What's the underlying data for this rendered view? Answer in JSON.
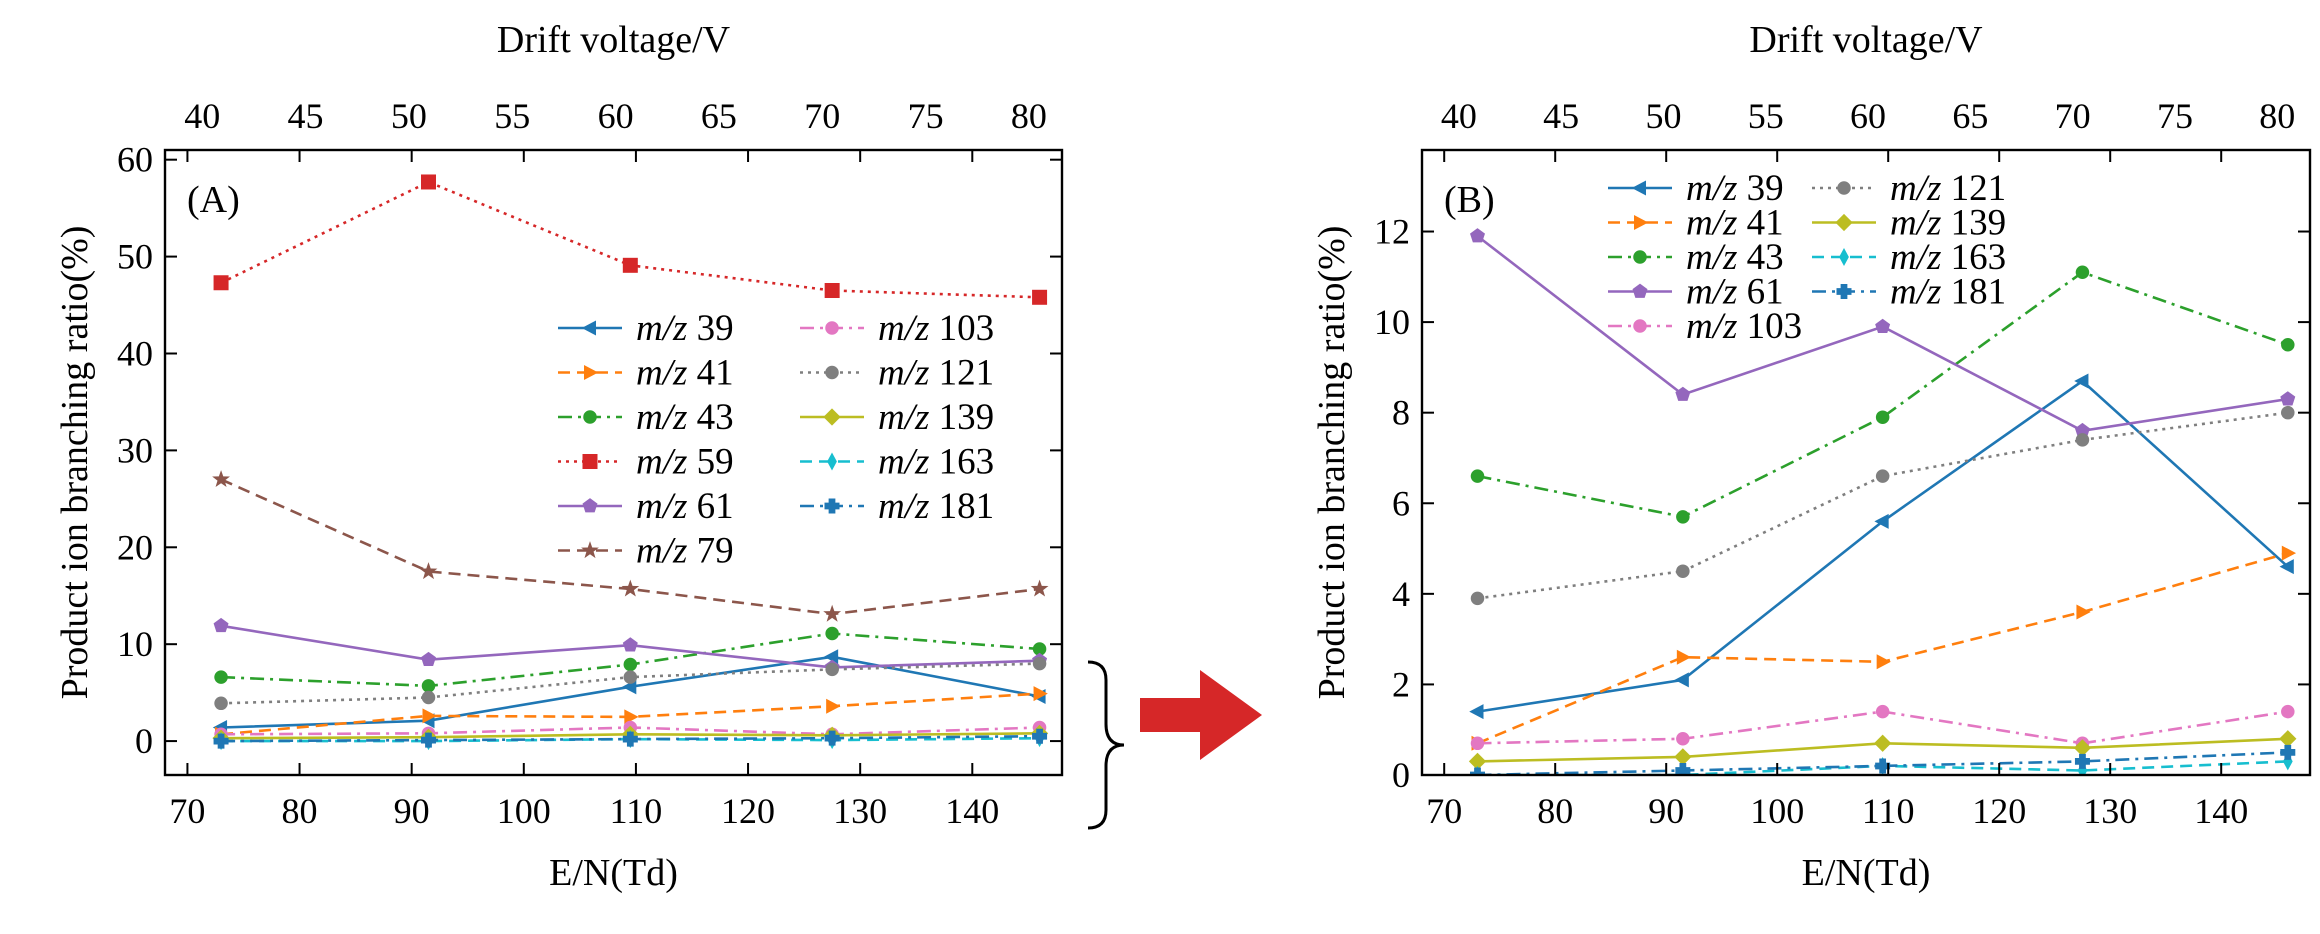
{
  "colors": {
    "m39": "#1f77b4",
    "m41": "#ff7f0e",
    "m43": "#2ca02c",
    "m59": "#d62728",
    "m61": "#9467bd",
    "m79": "#8c564b",
    "m103": "#e377c2",
    "m121": "#7f7f7f",
    "m139": "#bcbd22",
    "m163": "#17becf",
    "m181": "#1f77b4",
    "arrow": "#d62728"
  },
  "chart_data": [
    {
      "type": "line",
      "panel_label": "(A)",
      "xlabel": "E/N(Td)",
      "ylabel": "Product ion branching ratio(%)",
      "top_xlabel": "Drift voltage/V",
      "xlim": [
        68,
        148
      ],
      "ylim": [
        -3.5,
        61
      ],
      "x_ticks": [
        "70",
        "80",
        "90",
        "100",
        "110",
        "120",
        "130",
        "140"
      ],
      "y_ticks": [
        "0",
        "10",
        "20",
        "30",
        "40",
        "50",
        "60"
      ],
      "top_x_ticks": [
        "40",
        "45",
        "50",
        "55",
        "60",
        "65",
        "70",
        "75",
        "80"
      ],
      "top_xlim": [
        38.2,
        81.6
      ],
      "x": [
        73,
        91.5,
        109.5,
        127.5,
        146
      ],
      "legend_columns": [
        [
          "m39",
          "m41",
          "m43",
          "m59",
          "m61",
          "m79"
        ],
        [
          "m103",
          "m121",
          "m139",
          "m163",
          "m181"
        ]
      ],
      "series": [
        {
          "key": "m39",
          "prefix": "m/z",
          "number": "39",
          "values": [
            1.4,
            2.1,
            5.6,
            8.7,
            4.6
          ]
        },
        {
          "key": "m41",
          "prefix": "m/z",
          "number": "41",
          "values": [
            0.7,
            2.6,
            2.5,
            3.6,
            4.9
          ]
        },
        {
          "key": "m43",
          "prefix": "m/z",
          "number": "43",
          "values": [
            6.6,
            5.7,
            7.9,
            11.1,
            9.5
          ]
        },
        {
          "key": "m59",
          "prefix": "m/z",
          "number": "59",
          "values": [
            47.3,
            57.7,
            49.1,
            46.5,
            45.8
          ]
        },
        {
          "key": "m61",
          "prefix": "m/z",
          "number": "61",
          "values": [
            11.9,
            8.4,
            9.9,
            7.6,
            8.3
          ]
        },
        {
          "key": "m79",
          "prefix": "m/z",
          "number": "79",
          "values": [
            27.0,
            17.5,
            15.7,
            13.1,
            15.7
          ]
        },
        {
          "key": "m103",
          "prefix": "m/z",
          "number": "103",
          "values": [
            0.7,
            0.8,
            1.4,
            0.7,
            1.4
          ]
        },
        {
          "key": "m121",
          "prefix": "m/z",
          "number": "121",
          "values": [
            3.9,
            4.5,
            6.6,
            7.4,
            8.0
          ]
        },
        {
          "key": "m139",
          "prefix": "m/z",
          "number": "139",
          "values": [
            0.3,
            0.4,
            0.7,
            0.6,
            0.8
          ]
        },
        {
          "key": "m163",
          "prefix": "m/z",
          "number": "163",
          "values": [
            0.0,
            0.0,
            0.2,
            0.1,
            0.3
          ]
        },
        {
          "key": "m181",
          "prefix": "m/z",
          "number": "181",
          "values": [
            0.0,
            0.1,
            0.2,
            0.3,
            0.5
          ]
        }
      ]
    },
    {
      "type": "line",
      "panel_label": "(B)",
      "xlabel": "E/N(Td)",
      "ylabel": "Product ion branching ratio(%)",
      "top_xlabel": "Drift voltage/V",
      "xlim": [
        68,
        148
      ],
      "ylim": [
        0,
        13.8
      ],
      "x_ticks": [
        "70",
        "80",
        "90",
        "100",
        "110",
        "120",
        "130",
        "140"
      ],
      "y_ticks": [
        "0",
        "2",
        "4",
        "6",
        "8",
        "10",
        "12"
      ],
      "top_x_ticks": [
        "40",
        "45",
        "50",
        "55",
        "60",
        "65",
        "70",
        "75",
        "80"
      ],
      "top_xlim": [
        38.2,
        81.6
      ],
      "x": [
        73,
        91.5,
        109.5,
        127.5,
        146
      ],
      "legend_columns": [
        [
          "m39",
          "m41",
          "m43",
          "m61",
          "m103"
        ],
        [
          "m121",
          "m139",
          "m163",
          "m181"
        ]
      ],
      "series": [
        {
          "key": "m39",
          "prefix": "m/z",
          "number": "39",
          "values": [
            1.4,
            2.1,
            5.6,
            8.7,
            4.6
          ]
        },
        {
          "key": "m41",
          "prefix": "m/z",
          "number": "41",
          "values": [
            0.7,
            2.6,
            2.5,
            3.6,
            4.9
          ]
        },
        {
          "key": "m43",
          "prefix": "m/z",
          "number": "43",
          "values": [
            6.6,
            5.7,
            7.9,
            11.1,
            9.5
          ]
        },
        {
          "key": "m61",
          "prefix": "m/z",
          "number": "61",
          "values": [
            11.9,
            8.4,
            9.9,
            7.6,
            8.3
          ]
        },
        {
          "key": "m103",
          "prefix": "m/z",
          "number": "103",
          "values": [
            0.7,
            0.8,
            1.4,
            0.7,
            1.4
          ]
        },
        {
          "key": "m121",
          "prefix": "m/z",
          "number": "121",
          "values": [
            3.9,
            4.5,
            6.6,
            7.4,
            8.0
          ]
        },
        {
          "key": "m139",
          "prefix": "m/z",
          "number": "139",
          "values": [
            0.3,
            0.4,
            0.7,
            0.6,
            0.8
          ]
        },
        {
          "key": "m163",
          "prefix": "m/z",
          "number": "163",
          "values": [
            0.0,
            0.0,
            0.2,
            0.1,
            0.3
          ]
        },
        {
          "key": "m181",
          "prefix": "m/z",
          "number": "181",
          "values": [
            0.0,
            0.1,
            0.2,
            0.3,
            0.5
          ]
        }
      ]
    }
  ]
}
